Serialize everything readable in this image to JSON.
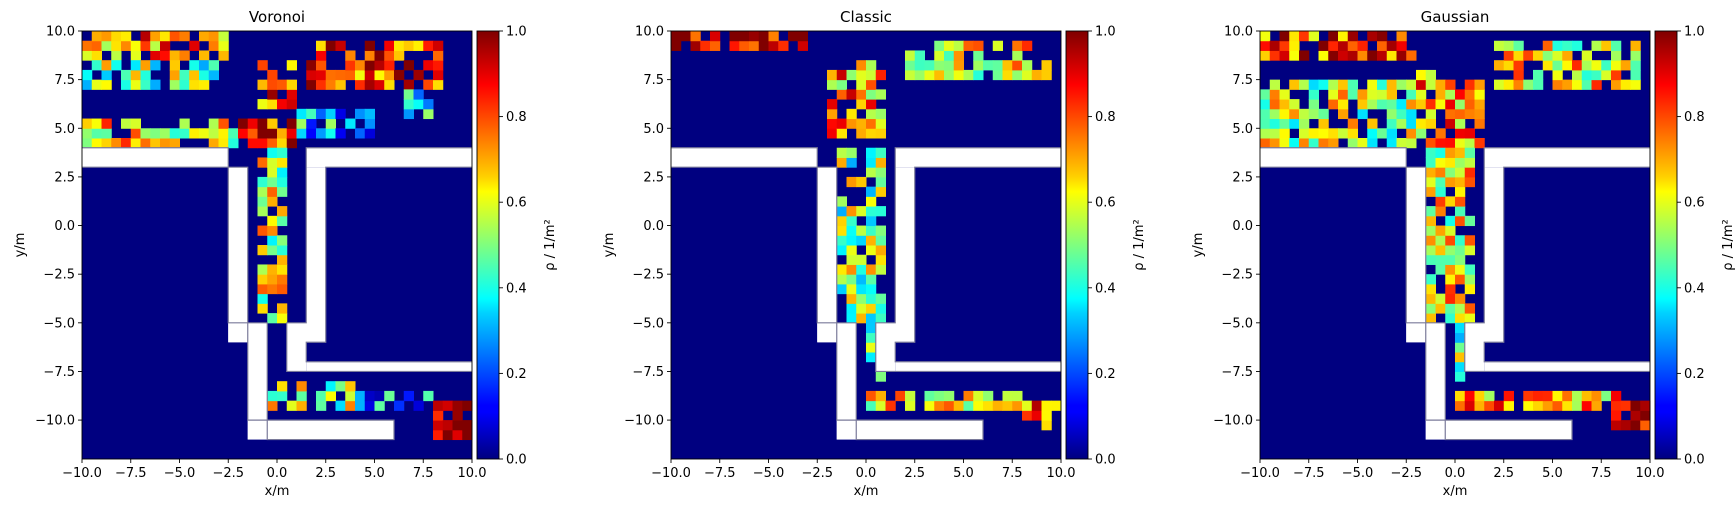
{
  "chart_data": [
    {
      "type": "heatmap",
      "title": "Voronoi",
      "xlabel": "x/m",
      "ylabel": "y/m",
      "xlim": [
        -10,
        10
      ],
      "ylim": [
        -12,
        10
      ],
      "cell_size": 0.5,
      "colorbar": {
        "label": "ρ / 1/m²",
        "range": [
          0,
          1
        ],
        "colormap": "jet",
        "ticks": [
          "0.0",
          "0.2",
          "0.4",
          "0.6",
          "0.8",
          "1.0"
        ]
      },
      "xticks": [
        "−10.0",
        "−7.5",
        "−5.0",
        "−2.5",
        "0.0",
        "2.5",
        "5.0",
        "7.5",
        "10.0"
      ],
      "yticks": [
        "−10.0",
        "−7.5",
        "−5.0",
        "−2.5",
        "0.0",
        "2.5",
        "5.0",
        "7.5",
        "10.0"
      ],
      "regions": [
        {
          "x": [
            -10,
            -2.5
          ],
          "y": [
            8.5,
            10
          ],
          "value": 0.72
        },
        {
          "x": [
            -10,
            -3
          ],
          "y": [
            7,
            8.5
          ],
          "value": 0.5
        },
        {
          "x": [
            -10,
            -2
          ],
          "y": [
            4,
            5.5
          ],
          "value": 0.6
        },
        {
          "x": [
            -2,
            1
          ],
          "y": [
            4,
            5.5
          ],
          "value": 0.85
        },
        {
          "x": [
            -1,
            1
          ],
          "y": [
            6,
            8.5
          ],
          "value": 0.8
        },
        {
          "x": [
            1.5,
            8.5
          ],
          "y": [
            7,
            9.5
          ],
          "value": 0.8
        },
        {
          "x": [
            1,
            5
          ],
          "y": [
            4.5,
            6
          ],
          "value": 0.3
        },
        {
          "x": [
            6.5,
            8
          ],
          "y": [
            5.5,
            7
          ],
          "value": 0.35
        },
        {
          "x": [
            -1,
            0.5
          ],
          "y": [
            -5,
            4
          ],
          "value": 0.55
        },
        {
          "x": [
            -0.5,
            4
          ],
          "y": [
            -9.5,
            -8
          ],
          "value": 0.55
        },
        {
          "x": [
            4,
            8
          ],
          "y": [
            -9.5,
            -8.5
          ],
          "value": 0.25
        },
        {
          "x": [
            8,
            10
          ],
          "y": [
            -11,
            -9
          ],
          "value": 0.9
        }
      ]
    },
    {
      "type": "heatmap",
      "title": "Classic",
      "xlabel": "x/m",
      "ylabel": "y/m",
      "xlim": [
        -10,
        10
      ],
      "ylim": [
        -12,
        10
      ],
      "cell_size": 0.5,
      "colorbar": {
        "label": "ρ / 1/m²",
        "range": [
          0,
          1
        ],
        "colormap": "jet",
        "ticks": [
          "0.0",
          "0.2",
          "0.4",
          "0.6",
          "0.8",
          "1.0"
        ]
      },
      "xticks": [
        "−10.0",
        "−7.5",
        "−5.0",
        "−2.5",
        "0.0",
        "2.5",
        "5.0",
        "7.5",
        "10.0"
      ],
      "yticks": [
        "−10.0",
        "−7.5",
        "−5.0",
        "−2.5",
        "0.0",
        "2.5",
        "5.0",
        "7.5",
        "10.0"
      ],
      "regions": [
        {
          "x": [
            -10,
            -3
          ],
          "y": [
            9,
            10
          ],
          "value": 0.95
        },
        {
          "x": [
            -2,
            1
          ],
          "y": [
            4.5,
            8.5
          ],
          "value": 0.7
        },
        {
          "x": [
            2,
            9.5
          ],
          "y": [
            7.5,
            9.5
          ],
          "value": 0.6
        },
        {
          "x": [
            -1.5,
            1
          ],
          "y": [
            -5,
            4
          ],
          "value": 0.5
        },
        {
          "x": [
            0,
            1
          ],
          "y": [
            -8,
            -5
          ],
          "value": 0.5
        },
        {
          "x": [
            0,
            8
          ],
          "y": [
            -9.5,
            -8.5
          ],
          "value": 0.6
        },
        {
          "x": [
            8,
            10
          ],
          "y": [
            -10.5,
            -9
          ],
          "value": 0.8
        }
      ]
    },
    {
      "type": "heatmap",
      "title": "Gaussian",
      "xlabel": "x/m",
      "ylabel": "y/m",
      "xlim": [
        -10,
        10
      ],
      "ylim": [
        -12,
        10
      ],
      "cell_size": 0.5,
      "colorbar": {
        "label": "ρ / 1/m²",
        "range": [
          0,
          1
        ],
        "colormap": "jet",
        "ticks": [
          "0.0",
          "0.2",
          "0.4",
          "0.6",
          "0.8",
          "1.0"
        ]
      },
      "xticks": [
        "−10.0",
        "−7.5",
        "−5.0",
        "−2.5",
        "0.0",
        "2.5",
        "5.0",
        "7.5",
        "10.0"
      ],
      "yticks": [
        "−10.0",
        "−7.5",
        "−5.0",
        "−2.5",
        "0.0",
        "2.5",
        "5.0",
        "7.5",
        "10.0"
      ],
      "regions": [
        {
          "x": [
            -10,
            -2
          ],
          "y": [
            8.5,
            10
          ],
          "value": 0.8
        },
        {
          "x": [
            -10,
            -2
          ],
          "y": [
            4,
            7.5
          ],
          "value": 0.55
        },
        {
          "x": [
            -2,
            1.5
          ],
          "y": [
            4,
            8
          ],
          "value": 0.7
        },
        {
          "x": [
            2,
            9.5
          ],
          "y": [
            7,
            9.5
          ],
          "value": 0.6
        },
        {
          "x": [
            -1.5,
            1
          ],
          "y": [
            -5,
            4
          ],
          "value": 0.6
        },
        {
          "x": [
            0,
            1
          ],
          "y": [
            -8,
            -5
          ],
          "value": 0.45
        },
        {
          "x": [
            0,
            8.5
          ],
          "y": [
            -9.5,
            -8.5
          ],
          "value": 0.7
        },
        {
          "x": [
            8,
            10
          ],
          "y": [
            -10.5,
            -9
          ],
          "value": 0.9
        }
      ]
    }
  ]
}
